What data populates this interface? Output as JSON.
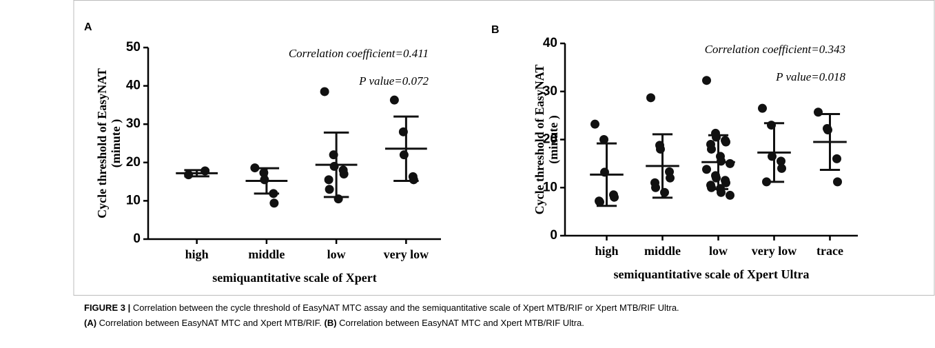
{
  "chart_data": [
    {
      "type": "dotplot",
      "panel": "A",
      "annotations": [
        "Correlation coefficient=0.411",
        "P value=0.072"
      ],
      "ylabel": [
        "Cycle threshold of EasyNAT",
        "(minute )"
      ],
      "xlabel": "semiquantitative scale of Xpert",
      "categories": [
        "high",
        "middle",
        "low",
        "very low"
      ],
      "values": [
        [
          16.8,
          17.8
        ],
        [
          18.6,
          17.3,
          15.5,
          11.9,
          9.4
        ],
        [
          38.5,
          22,
          19,
          18,
          17,
          15.5,
          13,
          10.5
        ],
        [
          36.3,
          28,
          22,
          16.3,
          15.5
        ]
      ],
      "means": [
        17.2,
        15.2,
        19.4,
        23.6
      ],
      "sds": [
        0.8,
        3.3,
        8.4,
        8.4
      ],
      "color": "#111111",
      "ylim": [
        0,
        50
      ],
      "yticks": [
        0,
        10,
        20,
        30,
        40,
        50
      ]
    },
    {
      "type": "dotplot",
      "panel": "B",
      "annotations": [
        "Correlation coefficient=0.343",
        "P value=0.018"
      ],
      "ylabel": [
        "Cycle threshold of EasyNAT",
        "(minute )"
      ],
      "xlabel": "semiquantitative scale of Xpert Ultra",
      "categories": [
        "high",
        "middle",
        "low",
        "very low",
        "trace"
      ],
      "values": [
        [
          23.2,
          20,
          13.2,
          8.5,
          8.0,
          7.2,
          7.0
        ],
        [
          28.7,
          18.8,
          18.0,
          13.3,
          12.0,
          11.0,
          10.0,
          9.0
        ],
        [
          32.3,
          21.3,
          20.5,
          19.8,
          19.5,
          19.0,
          18.0,
          16.5,
          15.5,
          15.0,
          13.8,
          12.5,
          12.0,
          11.5,
          11.0,
          10.5,
          10.0,
          9.8,
          9.0,
          8.4
        ],
        [
          26.5,
          23.0,
          16.5,
          15.5,
          14.0,
          11.2
        ],
        [
          25.7,
          22.3,
          22.0,
          16.0,
          11.2
        ]
      ],
      "means": [
        12.7,
        14.5,
        15.3,
        17.3,
        19.5
      ],
      "sds": [
        6.5,
        6.6,
        5.6,
        6.1,
        5.8
      ],
      "color": "#111111",
      "ylim": [
        0,
        40
      ],
      "yticks": [
        0,
        10,
        20,
        30,
        40
      ]
    }
  ],
  "caption": {
    "label": "FIGURE 3 |",
    "text": "Correlation between the cycle threshold of EasyNAT MTC assay and the semiquantitative scale of Xpert MTB/RIF or Xpert MTB/RIF Ultra.",
    "parts": [
      {
        "tag": "(A)",
        "text": "Correlation between EasyNAT MTC and Xpert MTB/RIF."
      },
      {
        "tag": "(B)",
        "text": "Correlation between EasyNAT MTC and Xpert MTB/RIF Ultra."
      }
    ]
  }
}
